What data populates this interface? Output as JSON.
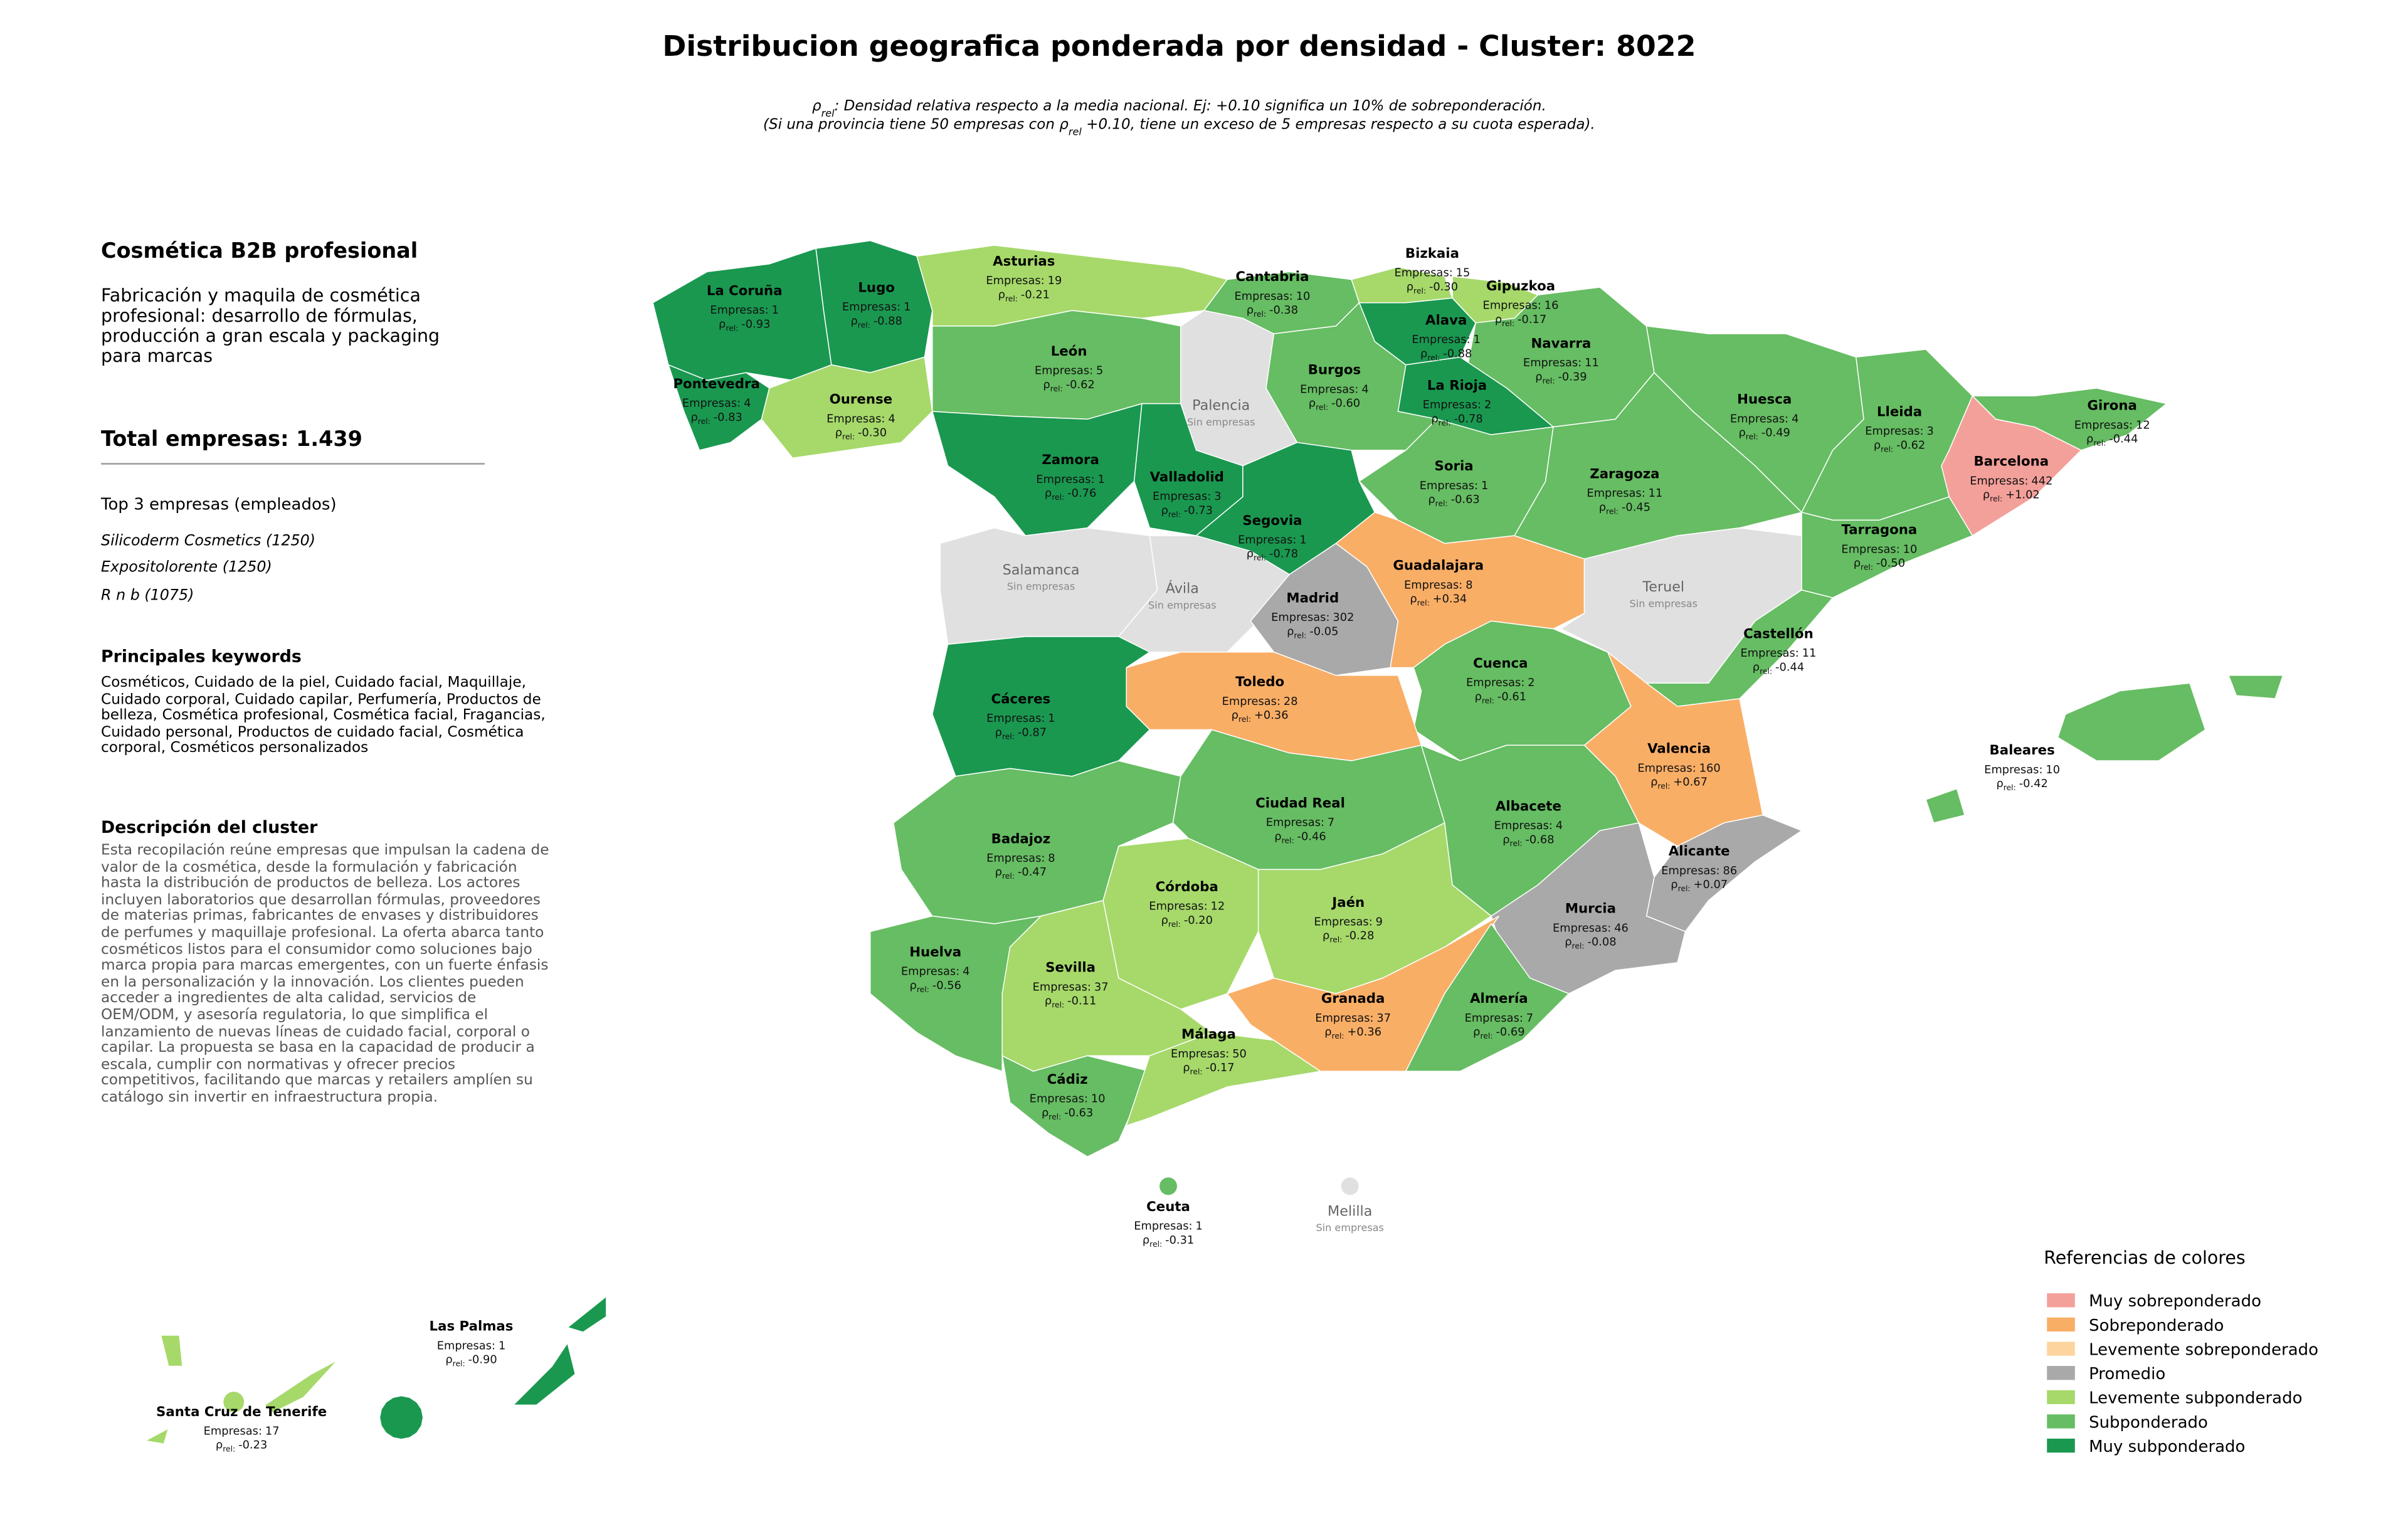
{
  "title": "Distribucion geografica ponderada por densidad - Cluster: 8022",
  "subtitle": [
    [
      {
        "text": "ρ"
      },
      {
        "text": "rel",
        "sub": true
      },
      {
        "text": ": Densidad relativa respecto a la media nacional. Ej: +0.10 significa un 10% de sobreponderación."
      }
    ],
    [
      {
        "text": "(Si una provincia tiene 50 empresas con "
      },
      {
        "text": "ρ"
      },
      {
        "text": "rel",
        "sub": true
      },
      {
        "text": " +0.10, tiene un exceso de 5 empresas respecto a su cuota esperada)."
      }
    ]
  ],
  "panel": {
    "title": "Cosmética B2B profesional",
    "description": "Fabricación y maquila de cosmética profesional: desarrollo de fórmulas, producción a gran escala y packaging para marcas",
    "total_label": "Total empresas:",
    "total": {
      "value": 1439,
      "label": "1.439"
    },
    "top_heading": "Top 3 empresas (empleados)",
    "top": [
      "Silicoderm Cosmetics (1250)",
      "Expositolorente (1250)",
      "R n b (1075)"
    ],
    "keywords_heading": "Principales keywords",
    "keywords": "Cosméticos, Cuidado de la piel, Cuidado facial, Maquillaje, Cuidado corporal, Cuidado capilar, Perfumería, Productos de belleza, Cosmética profesional, Cosmética facial, Fragancias, Cuidado personal, Productos de cuidado facial, Cosmética corporal, Cosméticos personalizados",
    "cluster_heading": "Descripción del cluster",
    "cluster_text": "Esta recopilación reúne empresas que impulsan la cadena de valor de la cosmética, desde la formulación y fabricación hasta la distribución de productos de belleza. Los actores incluyen laboratorios que desarrollan fórmulas, proveedores de materias primas, fabricantes de envases y distribuidores de perfumes y maquillaje profesional. La oferta abarca tanto cosméticos listos para el consumidor como soluciones bajo marca propia para marcas emergentes, con un fuerte énfasis en la personalización y la innovación. Los clientes pueden acceder a ingredientes de alta calidad, servicios de OEM/ODM, y asesoría regulatoria, lo que simplifica el lanzamiento de nuevas líneas de cuidado facial, corporal o capilar. La propuesta se basa en la capacidad de producir a escala, cumplir con normativas y ofrecer precios competitivos, facilitando que marcas y retailers amplíen su catálogo sin invertir en infraestructura propia."
  },
  "map": {
    "empresas_label": "Empresas:",
    "rho_symbol": "ρ",
    "rho_sub": "rel:",
    "no_data_label": "Sin empresas",
    "no_data_color": "#e0e0e0",
    "provinces": [
      {
        "name": "La Coruña",
        "empresas": 1,
        "rho": {
          "value": -0.93,
          "label": "-0.93"
        },
        "category": 6
      },
      {
        "name": "Lugo",
        "empresas": 1,
        "rho": {
          "value": -0.88,
          "label": "-0.88"
        },
        "category": 6
      },
      {
        "name": "Pontevedra",
        "empresas": 4,
        "rho": {
          "value": -0.83,
          "label": "-0.83"
        },
        "category": 6
      },
      {
        "name": "Ourense",
        "empresas": 4,
        "rho": {
          "value": -0.3,
          "label": "-0.30"
        },
        "category": 4
      },
      {
        "name": "Asturias",
        "empresas": 19,
        "rho": {
          "value": -0.21,
          "label": "-0.21"
        },
        "category": 4
      },
      {
        "name": "Cantabria",
        "empresas": 10,
        "rho": {
          "value": -0.38,
          "label": "-0.38"
        },
        "category": 5
      },
      {
        "name": "Bizkaia",
        "empresas": 15,
        "rho": {
          "value": -0.3,
          "label": "-0.30"
        },
        "category": 4
      },
      {
        "name": "Gipuzkoa",
        "empresas": 16,
        "rho": {
          "value": -0.17,
          "label": "-0.17"
        },
        "category": 4
      },
      {
        "name": "Alava",
        "empresas": 1,
        "rho": {
          "value": -0.88,
          "label": "-0.88"
        },
        "category": 6
      },
      {
        "name": "Navarra",
        "empresas": 11,
        "rho": {
          "value": -0.39,
          "label": "-0.39"
        },
        "category": 5
      },
      {
        "name": "La Rioja",
        "empresas": 2,
        "rho": {
          "value": -0.78,
          "label": "-0.78"
        },
        "category": 6
      },
      {
        "name": "León",
        "empresas": 5,
        "rho": {
          "value": -0.62,
          "label": "-0.62"
        },
        "category": 5
      },
      {
        "name": "Palencia",
        "empresas": null,
        "rho": null,
        "category": null
      },
      {
        "name": "Burgos",
        "empresas": 4,
        "rho": {
          "value": -0.6,
          "label": "-0.60"
        },
        "category": 5
      },
      {
        "name": "Zamora",
        "empresas": 1,
        "rho": {
          "value": -0.76,
          "label": "-0.76"
        },
        "category": 6
      },
      {
        "name": "Valladolid",
        "empresas": 3,
        "rho": {
          "value": -0.73,
          "label": "-0.73"
        },
        "category": 6
      },
      {
        "name": "Soria",
        "empresas": 1,
        "rho": {
          "value": -0.63,
          "label": "-0.63"
        },
        "category": 5
      },
      {
        "name": "Segovia",
        "empresas": 1,
        "rho": {
          "value": -0.78,
          "label": "-0.78"
        },
        "category": 6
      },
      {
        "name": "Salamanca",
        "empresas": null,
        "rho": null,
        "category": null
      },
      {
        "name": "Ávila",
        "empresas": null,
        "rho": null,
        "category": null
      },
      {
        "name": "Madrid",
        "empresas": 302,
        "rho": {
          "value": -0.05,
          "label": "-0.05"
        },
        "category": 3
      },
      {
        "name": "Guadalajara",
        "empresas": 8,
        "rho": {
          "value": 0.34,
          "label": "+0.34"
        },
        "category": 1
      },
      {
        "name": "Zaragoza",
        "empresas": 11,
        "rho": {
          "value": -0.45,
          "label": "-0.45"
        },
        "category": 5
      },
      {
        "name": "Huesca",
        "empresas": 4,
        "rho": {
          "value": -0.49,
          "label": "-0.49"
        },
        "category": 5
      },
      {
        "name": "Teruel",
        "empresas": null,
        "rho": null,
        "category": null
      },
      {
        "name": "Lleida",
        "empresas": 3,
        "rho": {
          "value": -0.62,
          "label": "-0.62"
        },
        "category": 5
      },
      {
        "name": "Girona",
        "empresas": 12,
        "rho": {
          "value": -0.44,
          "label": "-0.44"
        },
        "category": 5
      },
      {
        "name": "Barcelona",
        "empresas": 442,
        "rho": {
          "value": 1.02,
          "label": "+1.02"
        },
        "category": 0
      },
      {
        "name": "Tarragona",
        "empresas": 10,
        "rho": {
          "value": -0.5,
          "label": "-0.50"
        },
        "category": 5
      },
      {
        "name": "Castellón",
        "empresas": 11,
        "rho": {
          "value": -0.44,
          "label": "-0.44"
        },
        "category": 5
      },
      {
        "name": "Valencia",
        "empresas": 160,
        "rho": {
          "value": 0.67,
          "label": "+0.67"
        },
        "category": 1
      },
      {
        "name": "Alicante",
        "empresas": 86,
        "rho": {
          "value": 0.07,
          "label": "+0.07"
        },
        "category": 3
      },
      {
        "name": "Murcia",
        "empresas": 46,
        "rho": {
          "value": -0.08,
          "label": "-0.08"
        },
        "category": 3
      },
      {
        "name": "Cuenca",
        "empresas": 2,
        "rho": {
          "value": -0.61,
          "label": "-0.61"
        },
        "category": 5
      },
      {
        "name": "Toledo",
        "empresas": 28,
        "rho": {
          "value": 0.36,
          "label": "+0.36"
        },
        "category": 1
      },
      {
        "name": "Cáceres",
        "empresas": 1,
        "rho": {
          "value": -0.87,
          "label": "-0.87"
        },
        "category": 6
      },
      {
        "name": "Badajoz",
        "empresas": 8,
        "rho": {
          "value": -0.47,
          "label": "-0.47"
        },
        "category": 5
      },
      {
        "name": "Ciudad Real",
        "empresas": 7,
        "rho": {
          "value": -0.46,
          "label": "-0.46"
        },
        "category": 5
      },
      {
        "name": "Albacete",
        "empresas": 4,
        "rho": {
          "value": -0.68,
          "label": "-0.68"
        },
        "category": 5
      },
      {
        "name": "Córdoba",
        "empresas": 12,
        "rho": {
          "value": -0.2,
          "label": "-0.20"
        },
        "category": 4
      },
      {
        "name": "Jaén",
        "empresas": 9,
        "rho": {
          "value": -0.28,
          "label": "-0.28"
        },
        "category": 4
      },
      {
        "name": "Huelva",
        "empresas": 4,
        "rho": {
          "value": -0.56,
          "label": "-0.56"
        },
        "category": 5
      },
      {
        "name": "Sevilla",
        "empresas": 37,
        "rho": {
          "value": -0.11,
          "label": "-0.11"
        },
        "category": 4
      },
      {
        "name": "Cádiz",
        "empresas": 10,
        "rho": {
          "value": -0.63,
          "label": "-0.63"
        },
        "category": 5
      },
      {
        "name": "Málaga",
        "empresas": 50,
        "rho": {
          "value": -0.17,
          "label": "-0.17"
        },
        "category": 4
      },
      {
        "name": "Granada",
        "empresas": 37,
        "rho": {
          "value": 0.36,
          "label": "+0.36"
        },
        "category": 1
      },
      {
        "name": "Almería",
        "empresas": 7,
        "rho": {
          "value": -0.69,
          "label": "-0.69"
        },
        "category": 5
      },
      {
        "name": "Baleares",
        "empresas": 10,
        "rho": {
          "value": -0.42,
          "label": "-0.42"
        },
        "category": 5
      },
      {
        "name": "Las Palmas",
        "empresas": 1,
        "rho": {
          "value": -0.9,
          "label": "-0.90"
        },
        "category": 6
      },
      {
        "name": "Santa Cruz de Tenerife",
        "empresas": 17,
        "rho": {
          "value": -0.23,
          "label": "-0.23"
        },
        "category": 4
      },
      {
        "name": "Ceuta",
        "empresas": 1,
        "rho": {
          "value": -0.31,
          "label": "-0.31"
        },
        "category": 5
      },
      {
        "name": "Melilla",
        "empresas": null,
        "rho": null,
        "category": null
      }
    ]
  },
  "legend": {
    "title": "Referencias de colores",
    "items": [
      {
        "label": "Muy sobreponderado",
        "color": "#f4a09a"
      },
      {
        "label": "Sobreponderado",
        "color": "#f9ae66"
      },
      {
        "label": "Levemente sobreponderado",
        "color": "#fdd49e"
      },
      {
        "label": "Promedio",
        "color": "#a9a9a9"
      },
      {
        "label": "Levemente subponderado",
        "color": "#a6d96a"
      },
      {
        "label": "Subponderado",
        "color": "#66bd63"
      },
      {
        "label": "Muy subponderado",
        "color": "#1a9850"
      }
    ]
  }
}
